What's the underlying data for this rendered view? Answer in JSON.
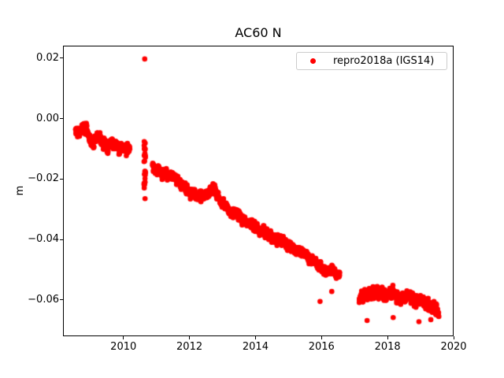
{
  "chart_data": {
    "type": "scatter",
    "title": "AC60 N",
    "xlabel": "",
    "ylabel": "m",
    "series_label": "repro2018a (IGS14)",
    "marker_color": "#ff0000",
    "marker_radius_px": 3.3,
    "legend_position": "upper right",
    "grid": false,
    "xlim": [
      2008.17,
      2020.0
    ],
    "ylim": [
      -0.072,
      0.0241
    ],
    "xticks": [
      2010,
      2012,
      2014,
      2016,
      2018,
      2020
    ],
    "xtick_labels": [
      "2010",
      "2012",
      "2014",
      "2016",
      "2018",
      "2020"
    ],
    "yticks": [
      0.02,
      0.0,
      -0.02,
      -0.04,
      -0.06
    ],
    "ytick_labels": [
      "0.02",
      "0.00",
      "−0.02",
      "−0.04",
      "−0.06"
    ],
    "segments": [
      {
        "name": "2008-2010 cluster",
        "t0": 2008.55,
        "t1": 2010.19,
        "n": 430,
        "seed": 101,
        "sigma": 0.0019,
        "cluster_amp": 0.0016,
        "cluster_every": 7,
        "t_jitter": 0.01,
        "anchors": [
          [
            2008.55,
            -0.0025
          ],
          [
            2008.66,
            -0.005
          ],
          [
            2008.78,
            -0.0035
          ],
          [
            2008.9,
            -0.003
          ],
          [
            2008.98,
            -0.0055
          ],
          [
            2009.1,
            -0.0078
          ],
          [
            2009.22,
            -0.0062
          ],
          [
            2009.33,
            -0.0068
          ],
          [
            2009.45,
            -0.009
          ],
          [
            2009.6,
            -0.0093
          ],
          [
            2009.75,
            -0.0082
          ],
          [
            2009.9,
            -0.0095
          ],
          [
            2010.05,
            -0.0098
          ],
          [
            2010.19,
            -0.01
          ]
        ]
      },
      {
        "name": "2010.64 vertical streak",
        "t0": 2010.625,
        "t1": 2010.665,
        "n": 26,
        "seed": 202,
        "uniform_v_range": [
          -0.0272,
          -0.0078
        ],
        "sigma": 0,
        "cluster_amp": 0,
        "cluster_every": 1,
        "t_jitter": 0.012,
        "anchors": [
          [
            2010.625,
            -0.0175
          ],
          [
            2010.665,
            -0.0175
          ]
        ]
      },
      {
        "name": "2010.9-2016.5 main band",
        "t0": 2010.88,
        "t1": 2016.55,
        "n": 1500,
        "seed": 303,
        "sigma": 0.00135,
        "cluster_amp": 0.0012,
        "cluster_every": 6,
        "t_jitter": 0.008,
        "anchors": [
          [
            2010.88,
            -0.016
          ],
          [
            2011.14,
            -0.0178
          ],
          [
            2011.38,
            -0.0188
          ],
          [
            2011.62,
            -0.0204
          ],
          [
            2011.86,
            -0.023
          ],
          [
            2012.1,
            -0.0248
          ],
          [
            2012.33,
            -0.0256
          ],
          [
            2012.57,
            -0.0243
          ],
          [
            2012.74,
            -0.0228
          ],
          [
            2012.93,
            -0.0268
          ],
          [
            2013.17,
            -0.0302
          ],
          [
            2013.4,
            -0.0318
          ],
          [
            2013.64,
            -0.0338
          ],
          [
            2013.88,
            -0.0351
          ],
          [
            2014.12,
            -0.0367
          ],
          [
            2014.36,
            -0.038
          ],
          [
            2014.6,
            -0.0395
          ],
          [
            2014.83,
            -0.0406
          ],
          [
            2015.07,
            -0.0424
          ],
          [
            2015.31,
            -0.0437
          ],
          [
            2015.55,
            -0.0457
          ],
          [
            2015.79,
            -0.0476
          ],
          [
            2016.02,
            -0.0496
          ],
          [
            2016.19,
            -0.0512
          ],
          [
            2016.36,
            -0.05
          ],
          [
            2016.55,
            -0.052
          ]
        ]
      },
      {
        "name": "2017-2019 cluster",
        "t0": 2017.14,
        "t1": 2019.55,
        "n": 630,
        "seed": 404,
        "sigma": 0.0016,
        "cluster_amp": 0.0014,
        "cluster_every": 6,
        "t_jitter": 0.008,
        "anchors": [
          [
            2017.14,
            -0.0597
          ],
          [
            2017.3,
            -0.0585
          ],
          [
            2017.45,
            -0.0578
          ],
          [
            2017.69,
            -0.057
          ],
          [
            2017.93,
            -0.0585
          ],
          [
            2018.17,
            -0.0578
          ],
          [
            2018.4,
            -0.0595
          ],
          [
            2018.64,
            -0.059
          ],
          [
            2018.88,
            -0.0605
          ],
          [
            2019.12,
            -0.061
          ],
          [
            2019.31,
            -0.0623
          ],
          [
            2019.55,
            -0.0635
          ]
        ]
      }
    ],
    "outlier_points": [
      [
        2010.645,
        0.0197
      ],
      [
        2010.63,
        -0.0076
      ],
      [
        2015.955,
        -0.0605
      ],
      [
        2016.31,
        -0.0572
      ],
      [
        2017.38,
        -0.0668
      ],
      [
        2018.17,
        -0.0658
      ],
      [
        2018.95,
        -0.0672
      ],
      [
        2019.31,
        -0.0665
      ]
    ]
  }
}
